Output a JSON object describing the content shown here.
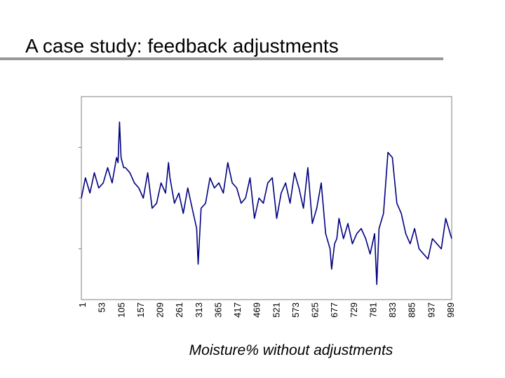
{
  "slide": {
    "title": "A case study: feedback adjustments",
    "caption": "Moisture% without adjustments"
  },
  "colors": {
    "series": "#000080",
    "frame": "#808080",
    "tick": "#808080"
  },
  "chart_data": {
    "type": "line",
    "title": "",
    "xlabel": "",
    "ylabel": "",
    "xlim": [
      1,
      1000
    ],
    "ylim": [
      0,
      4
    ],
    "grid": false,
    "x_tick_labels": [
      "1",
      "53",
      "105",
      "157",
      "209",
      "261",
      "313",
      "365",
      "417",
      "469",
      "521",
      "573",
      "625",
      "677",
      "729",
      "781",
      "833",
      "885",
      "937",
      "989"
    ],
    "series": [
      {
        "x": [
          1,
          12,
          24,
          36,
          48,
          60,
          72,
          84,
          96,
          100,
          104,
          108,
          115,
          120,
          132,
          144,
          156,
          168,
          180,
          192,
          204,
          216,
          228,
          236,
          240,
          252,
          264,
          276,
          288,
          300,
          312,
          316,
          324,
          336,
          348,
          360,
          372,
          384,
          396,
          408,
          420,
          432,
          444,
          456,
          468,
          480,
          492,
          504,
          516,
          528,
          540,
          552,
          564,
          576,
          588,
          600,
          612,
          624,
          636,
          648,
          660,
          672,
          676,
          684,
          690,
          696,
          708,
          720,
          732,
          744,
          756,
          768,
          780,
          792,
          798,
          804,
          816,
          828,
          840,
          852,
          864,
          876,
          888,
          900,
          912,
          924,
          936,
          948,
          960,
          972,
          984,
          996,
          1000
        ],
        "values": [
          2.0,
          2.4,
          2.1,
          2.5,
          2.2,
          2.3,
          2.6,
          2.3,
          2.8,
          2.7,
          3.5,
          2.8,
          2.6,
          2.6,
          2.5,
          2.3,
          2.2,
          2.0,
          2.5,
          1.8,
          1.9,
          2.3,
          2.1,
          2.7,
          2.4,
          1.9,
          2.1,
          1.7,
          2.2,
          1.8,
          1.4,
          0.7,
          1.8,
          1.9,
          2.4,
          2.2,
          2.3,
          2.1,
          2.7,
          2.3,
          2.2,
          1.9,
          2.0,
          2.4,
          1.6,
          2.0,
          1.9,
          2.3,
          2.4,
          1.6,
          2.1,
          2.3,
          1.9,
          2.5,
          2.2,
          1.8,
          2.6,
          1.5,
          1.8,
          2.3,
          1.3,
          1.0,
          0.6,
          1.1,
          1.2,
          1.6,
          1.2,
          1.5,
          1.1,
          1.3,
          1.4,
          1.2,
          0.9,
          1.3,
          0.3,
          1.4,
          1.7,
          2.9,
          2.8,
          1.9,
          1.7,
          1.3,
          1.1,
          1.4,
          1.0,
          0.9,
          0.8,
          1.2,
          1.1,
          1.0,
          1.6,
          1.3,
          1.2
        ]
      }
    ]
  }
}
